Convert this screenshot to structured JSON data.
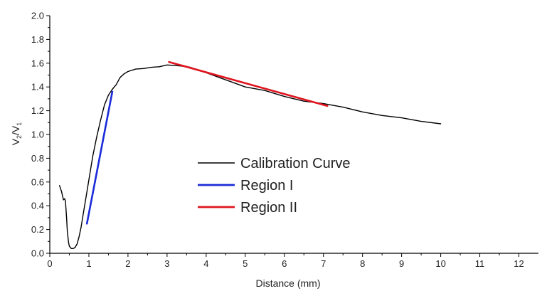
{
  "chart_data": {
    "type": "line",
    "xlabel": "Distance (mm)",
    "ylabel": {
      "base": "V",
      "num_sub": "2",
      "slash": "/",
      "den_base": "V",
      "den_sub": "1"
    },
    "xlim": [
      0,
      12.5
    ],
    "ylim": [
      0,
      2.0
    ],
    "x_ticks": [
      "0",
      "1",
      "2",
      "3",
      "4",
      "5",
      "6",
      "7",
      "8",
      "9",
      "10",
      "11",
      "12"
    ],
    "y_ticks": [
      "0.0",
      "0.2",
      "0.4",
      "0.6",
      "0.8",
      "1.0",
      "1.2",
      "1.4",
      "1.6",
      "1.8",
      "2.0"
    ],
    "grid": false,
    "legend_position": "center",
    "series": [
      {
        "name": "Calibration Curve",
        "color": "#000000",
        "x": [
          0.25,
          0.3,
          0.35,
          0.38,
          0.4,
          0.43,
          0.45,
          0.48,
          0.5,
          0.55,
          0.6,
          0.65,
          0.7,
          0.75,
          0.8,
          0.85,
          0.9,
          1.0,
          1.1,
          1.2,
          1.3,
          1.4,
          1.5,
          1.6,
          1.7,
          1.8,
          1.9,
          2.0,
          2.2,
          2.4,
          2.6,
          2.8,
          3.0,
          3.2,
          3.4,
          3.6,
          3.8,
          4.0,
          4.5,
          5.0,
          5.5,
          6.0,
          6.5,
          7.0,
          7.5,
          8.0,
          8.5,
          9.0,
          9.5,
          10.0
        ],
        "y": [
          0.57,
          0.52,
          0.45,
          0.46,
          0.44,
          0.3,
          0.18,
          0.09,
          0.06,
          0.04,
          0.04,
          0.05,
          0.08,
          0.14,
          0.22,
          0.32,
          0.42,
          0.62,
          0.82,
          0.98,
          1.12,
          1.25,
          1.33,
          1.38,
          1.42,
          1.48,
          1.51,
          1.53,
          1.55,
          1.555,
          1.565,
          1.57,
          1.585,
          1.58,
          1.575,
          1.565,
          1.54,
          1.52,
          1.46,
          1.4,
          1.37,
          1.32,
          1.28,
          1.26,
          1.23,
          1.19,
          1.16,
          1.14,
          1.11,
          1.09
        ]
      },
      {
        "name": "Region I",
        "color": "#1a2bd9",
        "x": [
          0.95,
          1.6
        ],
        "y": [
          0.25,
          1.36
        ]
      },
      {
        "name": "Region II",
        "color": "#e0141e",
        "x": [
          3.05,
          7.1
        ],
        "y": [
          1.61,
          1.24
        ]
      }
    ]
  }
}
